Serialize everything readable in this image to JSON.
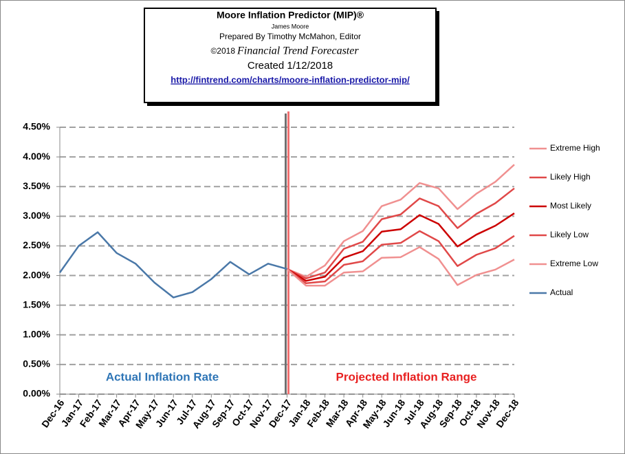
{
  "chart_data": {
    "type": "line",
    "title": "Moore Inflation Predictor (MIP)®",
    "author": "James Moore",
    "prepared_by": "Prepared  By Timothy McMahon, Editor",
    "copyright": "©2018",
    "publication": "Financial Trend Forecaster",
    "created": "Created  1/12/2018",
    "url": "http://fintrend.com/charts/moore-inflation-predictor-mip/",
    "annotations": [
      "Actual Inflation Rate",
      "Projected Inflation Range"
    ],
    "categories": [
      "Dec-16",
      "Jan-17",
      "Feb-17",
      "Mar-17",
      "Apr-17",
      "May-17",
      "Jun-17",
      "Jul-17",
      "Aug-17",
      "Sep-17",
      "Oct-17",
      "Nov-17",
      "Dec-17",
      "Jan-18",
      "Feb-18",
      "Mar-18",
      "Apr-18",
      "May-18",
      "Jun-18",
      "Jul-18",
      "Aug-18",
      "Sep-18",
      "Oct-18",
      "Nov-18",
      "Dec-18"
    ],
    "series": [
      {
        "name": "Extreme High",
        "color": "#f09090",
        "values": [
          null,
          null,
          null,
          null,
          null,
          null,
          null,
          null,
          null,
          null,
          null,
          null,
          2.11,
          1.98,
          2.17,
          2.58,
          2.75,
          3.17,
          3.28,
          3.56,
          3.47,
          3.12,
          3.38,
          3.58,
          3.87
        ]
      },
      {
        "name": "Likely High",
        "color": "#e04848",
        "values": [
          null,
          null,
          null,
          null,
          null,
          null,
          null,
          null,
          null,
          null,
          null,
          null,
          2.11,
          1.95,
          2.05,
          2.45,
          2.57,
          2.95,
          3.03,
          3.3,
          3.17,
          2.8,
          3.04,
          3.22,
          3.47
        ]
      },
      {
        "name": "Most Likely",
        "color": "#cc0000",
        "values": [
          null,
          null,
          null,
          null,
          null,
          null,
          null,
          null,
          null,
          null,
          null,
          null,
          2.11,
          1.91,
          1.98,
          2.3,
          2.41,
          2.74,
          2.78,
          3.02,
          2.87,
          2.49,
          2.69,
          2.84,
          3.05
        ]
      },
      {
        "name": "Likely Low",
        "color": "#e04848",
        "values": [
          null,
          null,
          null,
          null,
          null,
          null,
          null,
          null,
          null,
          null,
          null,
          null,
          2.11,
          1.87,
          1.9,
          2.18,
          2.24,
          2.52,
          2.55,
          2.75,
          2.58,
          2.16,
          2.35,
          2.46,
          2.67
        ]
      },
      {
        "name": "Extreme Low",
        "color": "#f09090",
        "values": [
          null,
          null,
          null,
          null,
          null,
          null,
          null,
          null,
          null,
          null,
          null,
          null,
          2.11,
          1.83,
          1.83,
          2.05,
          2.07,
          2.3,
          2.31,
          2.48,
          2.28,
          1.84,
          2.01,
          2.1,
          2.27
        ]
      },
      {
        "name": "Actual",
        "color": "#4a78a8",
        "values": [
          2.05,
          2.5,
          2.73,
          2.38,
          2.2,
          1.88,
          1.63,
          1.72,
          1.94,
          2.23,
          2.02,
          2.2,
          2.11,
          null,
          null,
          null,
          null,
          null,
          null,
          null,
          null,
          null,
          null,
          null,
          null
        ]
      }
    ],
    "ylim": [
      0,
      4.5
    ],
    "yticks": [
      {
        "value": 0,
        "label": "0.00%"
      },
      {
        "value": 0.5,
        "label": "0.50%"
      },
      {
        "value": 1,
        "label": "1.00%"
      },
      {
        "value": 1.5,
        "label": "1.50%"
      },
      {
        "value": 2,
        "label": "2.00%"
      },
      {
        "value": 2.5,
        "label": "2.50%"
      },
      {
        "value": 3,
        "label": "3.00%"
      },
      {
        "value": 3.5,
        "label": "3.50%"
      },
      {
        "value": 4,
        "label": "4.00%"
      },
      {
        "value": 4.5,
        "label": "4.50%"
      }
    ],
    "grid": true,
    "legend": "right"
  }
}
